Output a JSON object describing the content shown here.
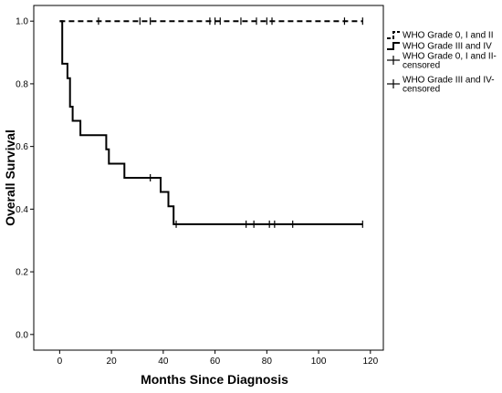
{
  "chart_data": {
    "type": "line",
    "chart_kind": "kaplan-meier survival",
    "xlabel": "Months Since Diagnosis",
    "ylabel": "Overall Survival",
    "xlim": [
      -10,
      125
    ],
    "ylim": [
      -0.05,
      1.05
    ],
    "xticks": [
      0,
      20,
      40,
      60,
      80,
      100,
      120
    ],
    "yticks": [
      0.0,
      0.2,
      0.4,
      0.6,
      0.8,
      1.0
    ],
    "ytick_labels": [
      "0.0",
      "0.2",
      "0.4",
      "0.6",
      "0.8",
      "1.0"
    ],
    "grid": false,
    "legend_position": "right",
    "series": [
      {
        "name": "WHO Grade 0, I and II",
        "style": "dashed",
        "color": "#000000",
        "steps": [
          [
            0,
            1.0
          ],
          [
            117,
            1.0
          ]
        ],
        "censored": [
          15,
          31,
          35,
          58,
          60,
          62,
          70,
          76,
          80,
          82,
          110,
          117
        ]
      },
      {
        "name": "WHO Grade III and IV",
        "style": "solid",
        "color": "#000000",
        "steps": [
          [
            0,
            1.0
          ],
          [
            1,
            1.0
          ],
          [
            1,
            0.864
          ],
          [
            3,
            0.864
          ],
          [
            3,
            0.818
          ],
          [
            4,
            0.818
          ],
          [
            4,
            0.727
          ],
          [
            5,
            0.727
          ],
          [
            5,
            0.682
          ],
          [
            8,
            0.682
          ],
          [
            8,
            0.636
          ],
          [
            18,
            0.636
          ],
          [
            18,
            0.591
          ],
          [
            19,
            0.591
          ],
          [
            19,
            0.545
          ],
          [
            25,
            0.545
          ],
          [
            25,
            0.5
          ],
          [
            39,
            0.5
          ],
          [
            39,
            0.455
          ],
          [
            42,
            0.455
          ],
          [
            42,
            0.409
          ],
          [
            44,
            0.409
          ],
          [
            44,
            0.352
          ],
          [
            117,
            0.352
          ]
        ],
        "censored": [
          35,
          45,
          72,
          75,
          81,
          83,
          90,
          117
        ]
      }
    ],
    "legend": [
      {
        "label": "WHO Grade 0, I and II",
        "style": "dashed-step"
      },
      {
        "label": "WHO Grade III and IV",
        "style": "solid-step"
      },
      {
        "label": "WHO Grade 0, I and II-censored",
        "style": "censor-mark"
      },
      {
        "label": "WHO Grade III and IV-censored",
        "style": "censor-mark"
      }
    ]
  }
}
